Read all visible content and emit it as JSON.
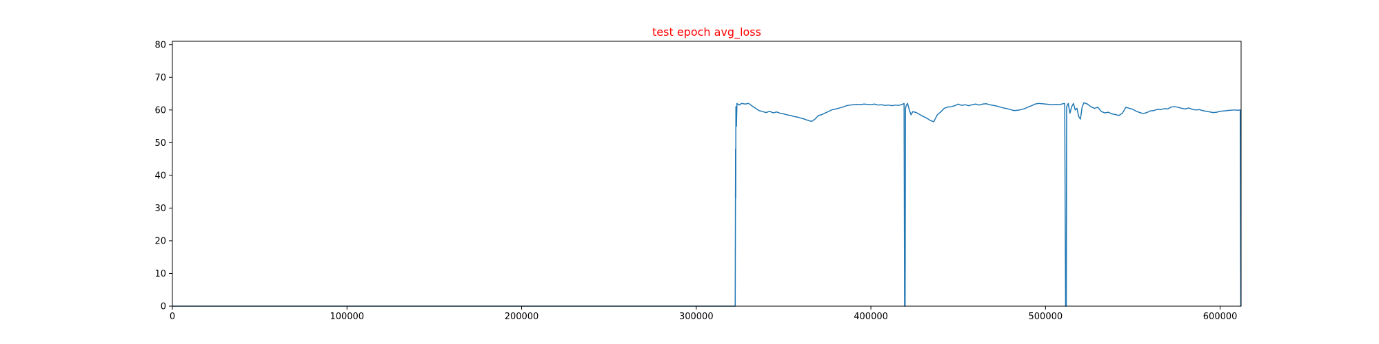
{
  "chart_data": {
    "type": "line",
    "title": "test epoch avg_loss",
    "title_color": "#ff0000",
    "xlabel": "",
    "ylabel": "",
    "xlim": [
      0,
      612000
    ],
    "ylim": [
      0,
      81
    ],
    "grid": false,
    "x_ticks": [
      0,
      100000,
      200000,
      300000,
      400000,
      500000,
      600000
    ],
    "x_tick_labels": [
      "0",
      "100000",
      "200000",
      "300000",
      "400000",
      "500000",
      "600000"
    ],
    "y_ticks": [
      0,
      10,
      20,
      30,
      40,
      50,
      60,
      70,
      80
    ],
    "y_tick_labels": [
      "0",
      "10",
      "20",
      "30",
      "40",
      "50",
      "60",
      "70",
      "80"
    ],
    "series": [
      {
        "color": "#1f77b4",
        "points": [
          [
            0,
            0
          ],
          [
            322000,
            0
          ],
          [
            322300,
            0
          ],
          [
            322400,
            23
          ],
          [
            322500,
            48
          ],
          [
            322600,
            33
          ],
          [
            322700,
            61
          ],
          [
            323000,
            55
          ],
          [
            323300,
            62
          ],
          [
            324500,
            61.5
          ],
          [
            326000,
            62
          ],
          [
            328000,
            61.8
          ],
          [
            330000,
            62
          ],
          [
            332000,
            61.2
          ],
          [
            334000,
            60.5
          ],
          [
            336000,
            59.8
          ],
          [
            338000,
            59.5
          ],
          [
            340000,
            59.2
          ],
          [
            342000,
            59.6
          ],
          [
            344000,
            59.1
          ],
          [
            346000,
            59.4
          ],
          [
            348000,
            59
          ],
          [
            350000,
            58.8
          ],
          [
            352000,
            58.5
          ],
          [
            354000,
            58.3
          ],
          [
            356000,
            58
          ],
          [
            358000,
            57.8
          ],
          [
            360000,
            57.5
          ],
          [
            362000,
            57.2
          ],
          [
            364000,
            56.8
          ],
          [
            366000,
            56.5
          ],
          [
            368000,
            57.2
          ],
          [
            370000,
            58.3
          ],
          [
            372000,
            58.6
          ],
          [
            374000,
            59.1
          ],
          [
            376000,
            59.6
          ],
          [
            378000,
            60.1
          ],
          [
            380000,
            60.3
          ],
          [
            382000,
            60.6
          ],
          [
            384000,
            60.9
          ],
          [
            386000,
            61.3
          ],
          [
            388000,
            61.5
          ],
          [
            390000,
            61.6
          ],
          [
            392000,
            61.7
          ],
          [
            394000,
            61.6
          ],
          [
            396000,
            61.8
          ],
          [
            398000,
            61.7
          ],
          [
            400000,
            61.6
          ],
          [
            402000,
            61.8
          ],
          [
            404000,
            61.5
          ],
          [
            406000,
            61.6
          ],
          [
            408000,
            61.4
          ],
          [
            410000,
            61.5
          ],
          [
            412000,
            61.3
          ],
          [
            414000,
            61.5
          ],
          [
            416000,
            61.4
          ],
          [
            418000,
            61.7
          ],
          [
            419000,
            62
          ],
          [
            419300,
            0
          ],
          [
            419600,
            0
          ],
          [
            419800,
            60.5
          ],
          [
            420300,
            61.5
          ],
          [
            421000,
            62
          ],
          [
            422000,
            60
          ],
          [
            423000,
            58.5
          ],
          [
            424000,
            59.5
          ],
          [
            426000,
            59.2
          ],
          [
            428000,
            58.6
          ],
          [
            430000,
            58
          ],
          [
            432000,
            57.5
          ],
          [
            434000,
            56.8
          ],
          [
            436000,
            56.4
          ],
          [
            438000,
            58.5
          ],
          [
            440000,
            59.4
          ],
          [
            442000,
            60.5
          ],
          [
            444000,
            60.9
          ],
          [
            446000,
            61
          ],
          [
            448000,
            61.3
          ],
          [
            450000,
            61.8
          ],
          [
            452000,
            61.4
          ],
          [
            454000,
            61.6
          ],
          [
            456000,
            61.3
          ],
          [
            458000,
            61.6
          ],
          [
            460000,
            61.8
          ],
          [
            462000,
            61.5
          ],
          [
            464000,
            61.8
          ],
          [
            466000,
            61.9
          ],
          [
            468000,
            61.6
          ],
          [
            470000,
            61.4
          ],
          [
            472000,
            61.2
          ],
          [
            474000,
            60.9
          ],
          [
            476000,
            60.6
          ],
          [
            478000,
            60.4
          ],
          [
            480000,
            60.1
          ],
          [
            482000,
            59.8
          ],
          [
            484000,
            59.9
          ],
          [
            486000,
            60.1
          ],
          [
            488000,
            60.4
          ],
          [
            490000,
            60.9
          ],
          [
            492000,
            61.3
          ],
          [
            494000,
            61.8
          ],
          [
            496000,
            62
          ],
          [
            498000,
            61.9
          ],
          [
            500000,
            61.8
          ],
          [
            502000,
            61.7
          ],
          [
            504000,
            61.6
          ],
          [
            506000,
            61.7
          ],
          [
            508000,
            61.6
          ],
          [
            510000,
            61.9
          ],
          [
            511000,
            62
          ],
          [
            511500,
            0
          ],
          [
            511900,
            0
          ],
          [
            512100,
            61
          ],
          [
            513000,
            62
          ],
          [
            514000,
            59
          ],
          [
            515000,
            61
          ],
          [
            516000,
            62
          ],
          [
            517000,
            60
          ],
          [
            518000,
            60.5
          ],
          [
            519000,
            58
          ],
          [
            520000,
            57.2
          ],
          [
            521000,
            61
          ],
          [
            522000,
            62.2
          ],
          [
            524000,
            61.8
          ],
          [
            526000,
            61
          ],
          [
            528000,
            60.5
          ],
          [
            530000,
            60.8
          ],
          [
            532000,
            59.5
          ],
          [
            534000,
            59.1
          ],
          [
            536000,
            59.3
          ],
          [
            538000,
            58.8
          ],
          [
            540000,
            58.6
          ],
          [
            542000,
            58.3
          ],
          [
            544000,
            59
          ],
          [
            546000,
            60.8
          ],
          [
            548000,
            60.5
          ],
          [
            550000,
            60.2
          ],
          [
            552000,
            59.6
          ],
          [
            554000,
            59.2
          ],
          [
            556000,
            58.9
          ],
          [
            558000,
            59.2
          ],
          [
            560000,
            59.7
          ],
          [
            562000,
            59.8
          ],
          [
            564000,
            60.2
          ],
          [
            566000,
            60.1
          ],
          [
            568000,
            60.4
          ],
          [
            570000,
            60.3
          ],
          [
            572000,
            60.9
          ],
          [
            574000,
            61
          ],
          [
            576000,
            60.8
          ],
          [
            578000,
            60.5
          ],
          [
            580000,
            60.3
          ],
          [
            582000,
            60.6
          ],
          [
            584000,
            60.2
          ],
          [
            586000,
            60
          ],
          [
            588000,
            60.1
          ],
          [
            590000,
            59.8
          ],
          [
            592000,
            59.6
          ],
          [
            594000,
            59.4
          ],
          [
            596000,
            59.2
          ],
          [
            598000,
            59.3
          ],
          [
            600000,
            59.6
          ],
          [
            602000,
            59.7
          ],
          [
            604000,
            59.8
          ],
          [
            606000,
            59.9
          ],
          [
            608000,
            60
          ],
          [
            610000,
            59.9
          ],
          [
            611500,
            60
          ],
          [
            611800,
            0
          ],
          [
            612000,
            0
          ]
        ]
      }
    ]
  }
}
